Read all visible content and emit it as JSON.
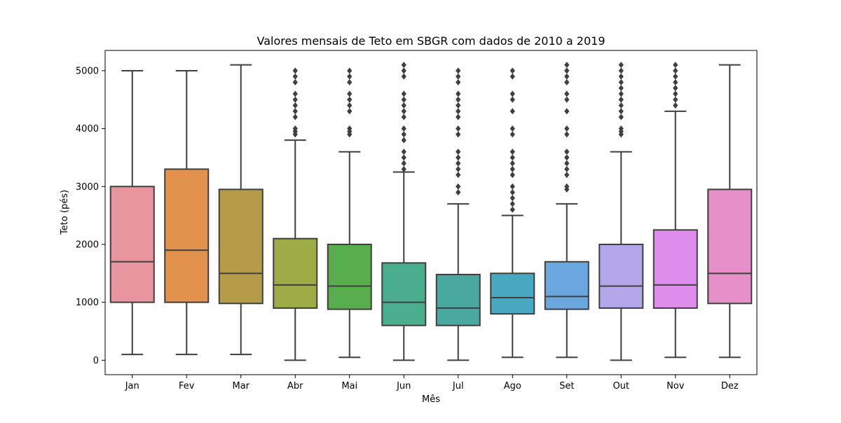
{
  "chart_data": {
    "type": "box",
    "title": "Valores mensais de Teto em SBGR com dados de 2010 a 2019",
    "xlabel": "Mês",
    "ylabel": "Teto (pés)",
    "ylim": [
      -250,
      5350
    ],
    "yticks": [
      0,
      1000,
      2000,
      3000,
      4000,
      5000
    ],
    "grid": false,
    "categories": [
      "Jan",
      "Fev",
      "Mar",
      "Abr",
      "Mai",
      "Jun",
      "Jul",
      "Ago",
      "Set",
      "Out",
      "Nov",
      "Dez"
    ],
    "boxes": [
      {
        "month": "Jan",
        "whisker_low": 100,
        "q1": 1000,
        "median": 1700,
        "q3": 3000,
        "whisker_high": 5000,
        "outliers": [],
        "color": "#e8959f"
      },
      {
        "month": "Fev",
        "whisker_low": 100,
        "q1": 1000,
        "median": 1900,
        "q3": 3300,
        "whisker_high": 5000,
        "outliers": [],
        "color": "#e2924d"
      },
      {
        "month": "Mar",
        "whisker_low": 100,
        "q1": 980,
        "median": 1500,
        "q3": 2950,
        "whisker_high": 5100,
        "outliers": [],
        "color": "#b69c48"
      },
      {
        "month": "Abr",
        "whisker_low": 0,
        "q1": 900,
        "median": 1300,
        "q3": 2100,
        "whisker_high": 3800,
        "outliers": [
          3900,
          3950,
          4000,
          4200,
          4300,
          4400,
          4500,
          4600,
          4800,
          4900,
          5000
        ],
        "color": "#9eaa45"
      },
      {
        "month": "Mai",
        "whisker_low": 50,
        "q1": 880,
        "median": 1280,
        "q3": 2000,
        "whisker_high": 3600,
        "outliers": [
          3900,
          3950,
          4000,
          4300,
          4400,
          4500,
          4600,
          4800,
          4900,
          5000
        ],
        "color": "#58ad4d"
      },
      {
        "month": "Jun",
        "whisker_low": 0,
        "q1": 600,
        "median": 1000,
        "q3": 1680,
        "whisker_high": 3250,
        "outliers": [
          3300,
          3400,
          3500,
          3600,
          3800,
          3900,
          4000,
          4200,
          4300,
          4400,
          4500,
          4600,
          4900,
          5000,
          5100
        ],
        "color": "#4aad8e"
      },
      {
        "month": "Jul",
        "whisker_low": 0,
        "q1": 600,
        "median": 900,
        "q3": 1480,
        "whisker_high": 2700,
        "outliers": [
          2900,
          3000,
          3200,
          3300,
          3400,
          3500,
          3600,
          3900,
          4000,
          4200,
          4300,
          4400,
          4500,
          4600,
          4800,
          4900,
          5000
        ],
        "color": "#49a9a0"
      },
      {
        "month": "Ago",
        "whisker_low": 50,
        "q1": 800,
        "median": 1080,
        "q3": 1500,
        "whisker_high": 2500,
        "outliers": [
          2600,
          2700,
          2800,
          2900,
          3000,
          3200,
          3300,
          3400,
          3500,
          3600,
          3900,
          4000,
          4300,
          4500,
          4600,
          4900,
          5000
        ],
        "color": "#47a8bf"
      },
      {
        "month": "Set",
        "whisker_low": 50,
        "q1": 880,
        "median": 1100,
        "q3": 1700,
        "whisker_high": 2700,
        "outliers": [
          2950,
          3000,
          3200,
          3300,
          3400,
          3500,
          3600,
          3900,
          4000,
          4300,
          4500,
          4600,
          4800,
          4900,
          5000,
          5100
        ],
        "color": "#6aa7df"
      },
      {
        "month": "Out",
        "whisker_low": 0,
        "q1": 900,
        "median": 1280,
        "q3": 2000,
        "whisker_high": 3600,
        "outliers": [
          3900,
          3950,
          4000,
          4200,
          4300,
          4400,
          4500,
          4600,
          4700,
          4800,
          4900,
          5000,
          5100
        ],
        "color": "#b3a7ea"
      },
      {
        "month": "Nov",
        "whisker_low": 50,
        "q1": 900,
        "median": 1300,
        "q3": 2250,
        "whisker_high": 4300,
        "outliers": [
          4400,
          4500,
          4600,
          4700,
          4800,
          4900,
          5000,
          5100
        ],
        "color": "#df8ded"
      },
      {
        "month": "Dez",
        "whisker_low": 50,
        "q1": 980,
        "median": 1500,
        "q3": 2950,
        "whisker_high": 5100,
        "outliers": [],
        "color": "#e68fc8"
      }
    ],
    "line_color": "#3f3f3f"
  }
}
